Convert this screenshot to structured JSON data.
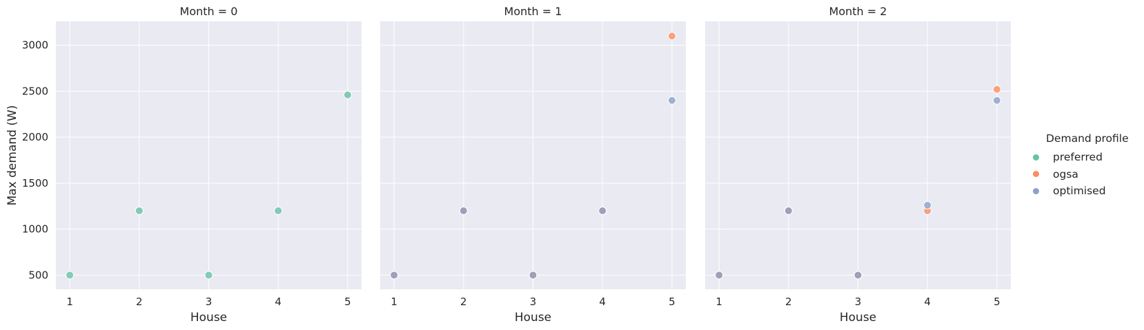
{
  "chart_data": [
    {
      "type": "scatter",
      "title": "Month = 0",
      "xlabel": "House",
      "ylabel": "Max demand (W)",
      "xlim": [
        0.8,
        5.2
      ],
      "ylim": [
        345,
        3260
      ],
      "xticks": [
        1,
        2,
        3,
        4,
        5
      ],
      "yticks": [
        500,
        1000,
        1500,
        2000,
        2500,
        3000
      ],
      "grid": true,
      "series": [
        {
          "name": "preferred",
          "x": [
            1,
            2,
            3,
            4,
            5
          ],
          "y": [
            500,
            1200,
            500,
            1200,
            2460
          ]
        }
      ]
    },
    {
      "type": "scatter",
      "title": "Month = 1",
      "xlabel": "House",
      "ylabel": "",
      "xlim": [
        0.8,
        5.2
      ],
      "ylim": [
        345,
        3260
      ],
      "xticks": [
        1,
        2,
        3,
        4,
        5
      ],
      "yticks": [
        500,
        1000,
        1500,
        2000,
        2500,
        3000
      ],
      "grid": true,
      "series": [
        {
          "name": "preferred",
          "x": [
            1,
            2,
            3,
            4
          ],
          "y": [
            500,
            1200,
            500,
            1200
          ]
        },
        {
          "name": "ogsa",
          "x": [
            1,
            2,
            3,
            4,
            5
          ],
          "y": [
            500,
            1200,
            500,
            1200,
            3100
          ]
        },
        {
          "name": "optimised",
          "x": [
            1,
            2,
            3,
            4,
            5
          ],
          "y": [
            500,
            1200,
            500,
            1200,
            2400
          ]
        }
      ]
    },
    {
      "type": "scatter",
      "title": "Month = 2",
      "xlabel": "House",
      "ylabel": "",
      "xlim": [
        0.8,
        5.2
      ],
      "ylim": [
        345,
        3260
      ],
      "xticks": [
        1,
        2,
        3,
        4,
        5
      ],
      "yticks": [
        500,
        1000,
        1500,
        2000,
        2500,
        3000
      ],
      "grid": true,
      "series": [
        {
          "name": "preferred",
          "x": [
            1,
            2,
            3
          ],
          "y": [
            500,
            1200,
            500
          ]
        },
        {
          "name": "ogsa",
          "x": [
            1,
            2,
            3,
            4,
            5
          ],
          "y": [
            500,
            1200,
            500,
            1200,
            2520
          ]
        },
        {
          "name": "optimised",
          "x": [
            1,
            2,
            3,
            4,
            5
          ],
          "y": [
            500,
            1200,
            500,
            1260,
            2400
          ]
        }
      ]
    }
  ],
  "legend": {
    "title": "Demand profile",
    "placement": "right",
    "items": [
      {
        "label": "preferred",
        "color": "#66c2a5"
      },
      {
        "label": "ogsa",
        "color": "#fc8d62"
      },
      {
        "label": "optimised",
        "color": "#8da0cb"
      }
    ]
  },
  "colors": {
    "panel_background": "#eaeaf2",
    "grid": "#ffffff",
    "text": "#262626"
  }
}
